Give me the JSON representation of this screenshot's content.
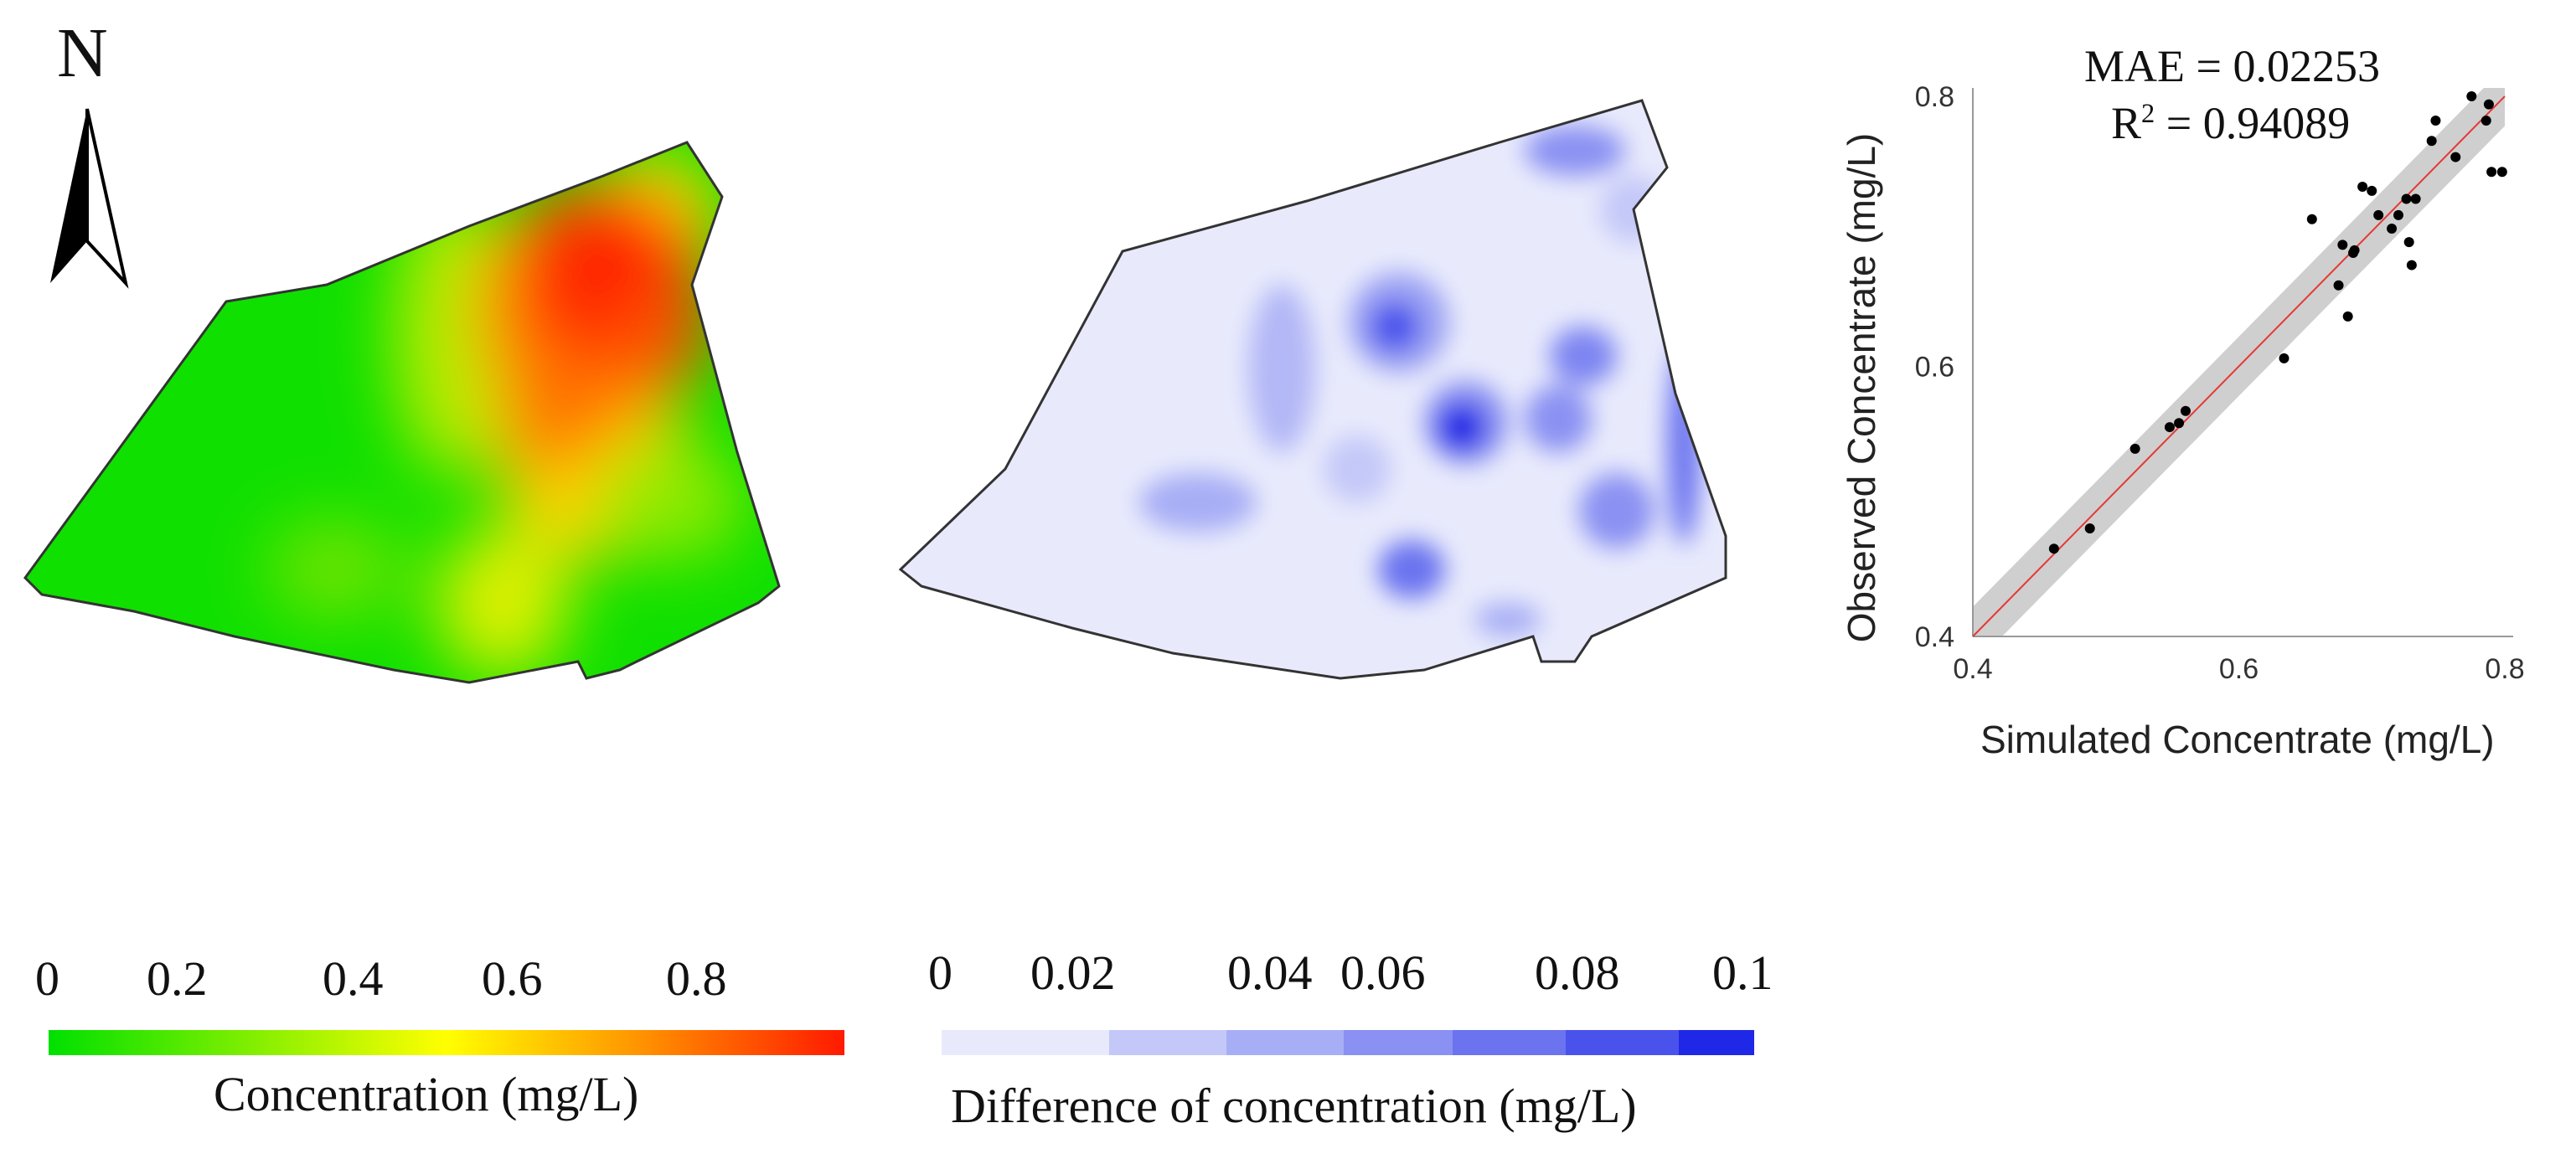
{
  "north_label": "N",
  "map_concentration": {
    "legend": {
      "ticks": [
        "0",
        "0.2",
        "0.4",
        "0.6",
        "0.8"
      ],
      "title": "Concentration (mg/L)",
      "colors": [
        "#00e000",
        "#7fee00",
        "#ffff00",
        "#ff9000",
        "#ff1a00"
      ]
    }
  },
  "map_difference": {
    "legend": {
      "ticks": [
        "0",
        "0.02",
        "0.04",
        "0.06",
        "0.08",
        "0.1"
      ],
      "title": "Difference of concentration (mg/L)",
      "colors": [
        "#e8eafc",
        "#c4c8f8",
        "#a7aef5",
        "#8a91f2",
        "#6b73ef",
        "#4a52ec",
        "#1f28e6"
      ]
    }
  },
  "chart_data": {
    "type": "scatter",
    "title": "",
    "mae_text": "MAE = 0.02253",
    "r2_label": "R",
    "r2_sup": "2",
    "r2_value": " = 0.94089",
    "xlabel": "Simulated Concentrate (mg/L)",
    "ylabel": "Observed Concentrate (mg/L)",
    "xlim": [
      0.4,
      0.8
    ],
    "ylim": [
      0.4,
      0.8
    ],
    "xticks": [
      "0.4",
      "0.6",
      "0.8"
    ],
    "yticks": [
      "0.4",
      "0.6",
      "0.8"
    ],
    "fit_line": {
      "x": [
        0.4,
        0.8
      ],
      "y": [
        0.4,
        0.8
      ],
      "color": "#e53935"
    },
    "confidence_band_halfwidth": 0.022,
    "points": [
      {
        "x": 0.461,
        "y": 0.465
      },
      {
        "x": 0.488,
        "y": 0.48
      },
      {
        "x": 0.522,
        "y": 0.539
      },
      {
        "x": 0.548,
        "y": 0.555
      },
      {
        "x": 0.555,
        "y": 0.558
      },
      {
        "x": 0.56,
        "y": 0.567
      },
      {
        "x": 0.634,
        "y": 0.606
      },
      {
        "x": 0.655,
        "y": 0.709
      },
      {
        "x": 0.675,
        "y": 0.66
      },
      {
        "x": 0.678,
        "y": 0.69
      },
      {
        "x": 0.682,
        "y": 0.637
      },
      {
        "x": 0.686,
        "y": 0.684
      },
      {
        "x": 0.687,
        "y": 0.686
      },
      {
        "x": 0.693,
        "y": 0.733
      },
      {
        "x": 0.7,
        "y": 0.73
      },
      {
        "x": 0.705,
        "y": 0.712
      },
      {
        "x": 0.715,
        "y": 0.702
      },
      {
        "x": 0.72,
        "y": 0.712
      },
      {
        "x": 0.726,
        "y": 0.724
      },
      {
        "x": 0.728,
        "y": 0.692
      },
      {
        "x": 0.73,
        "y": 0.675
      },
      {
        "x": 0.733,
        "y": 0.724
      },
      {
        "x": 0.745,
        "y": 0.767
      },
      {
        "x": 0.748,
        "y": 0.782
      },
      {
        "x": 0.763,
        "y": 0.755
      },
      {
        "x": 0.775,
        "y": 0.8
      },
      {
        "x": 0.786,
        "y": 0.782
      },
      {
        "x": 0.788,
        "y": 0.794
      },
      {
        "x": 0.79,
        "y": 0.744
      },
      {
        "x": 0.798,
        "y": 0.744
      }
    ]
  }
}
